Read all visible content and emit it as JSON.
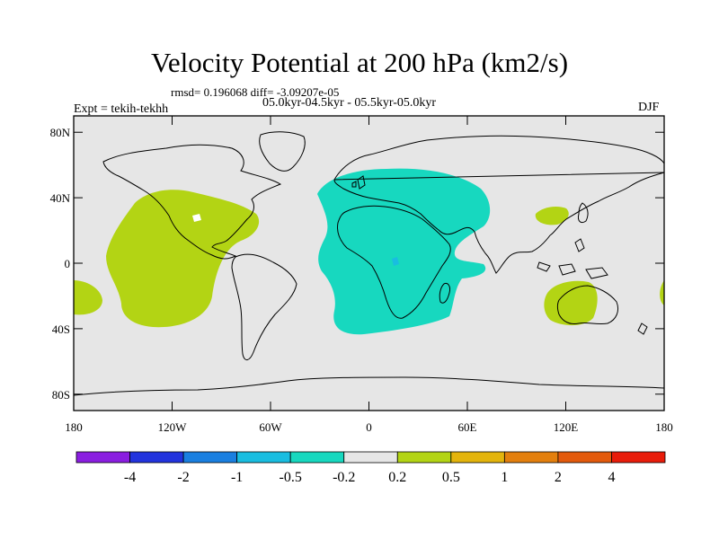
{
  "title": "Velocity Potential at 200 hPa (km2/s)",
  "stats_line": "rmsd= 0.196068 diff= -3.09207e-05",
  "period_line": "05.0kyr-04.5kyr - 05.5kyr-05.0kyr",
  "experiment": "Expt = tekih-tekhh",
  "season": "DJF",
  "map": {
    "background_color": "#e6e6e6",
    "coast_color": "#000000",
    "y_ticks": [
      "80N",
      "40N",
      "0",
      "40S",
      "80S"
    ],
    "x_ticks": [
      "180",
      "120W",
      "60W",
      "0",
      "60E",
      "120E",
      "180"
    ],
    "y_tick_lats": [
      80,
      40,
      0,
      -40,
      -80
    ],
    "x_tick_lons": [
      -180,
      -120,
      -60,
      0,
      60,
      120,
      180
    ],
    "lon_range": [
      -180,
      180
    ],
    "lat_range": [
      -90,
      90
    ]
  },
  "colorbar": {
    "colors": [
      "#8a1ee0",
      "#2233dd",
      "#1a7fe0",
      "#19bde0",
      "#17d8bf",
      "#e6e6e6",
      "#b3d414",
      "#e3b40c",
      "#e37f0d",
      "#e35a0c",
      "#e81c0a"
    ],
    "labels": [
      "-4",
      "-2",
      "-1",
      "-0.5",
      "-0.2",
      "0.2",
      "0.5",
      "1",
      "2",
      "4"
    ]
  },
  "anomalies": [
    {
      "name": "north-atlantic-america-positive",
      "sign": "positive",
      "color": "#b3d414"
    },
    {
      "name": "africa-europe-negative",
      "sign": "negative",
      "color": "#17d8bf"
    },
    {
      "name": "east-asia-positive",
      "sign": "positive",
      "color": "#b3d414"
    },
    {
      "name": "australia-positive",
      "sign": "positive",
      "color": "#b3d414"
    },
    {
      "name": "dateline-positive",
      "sign": "positive",
      "color": "#b3d414"
    }
  ]
}
